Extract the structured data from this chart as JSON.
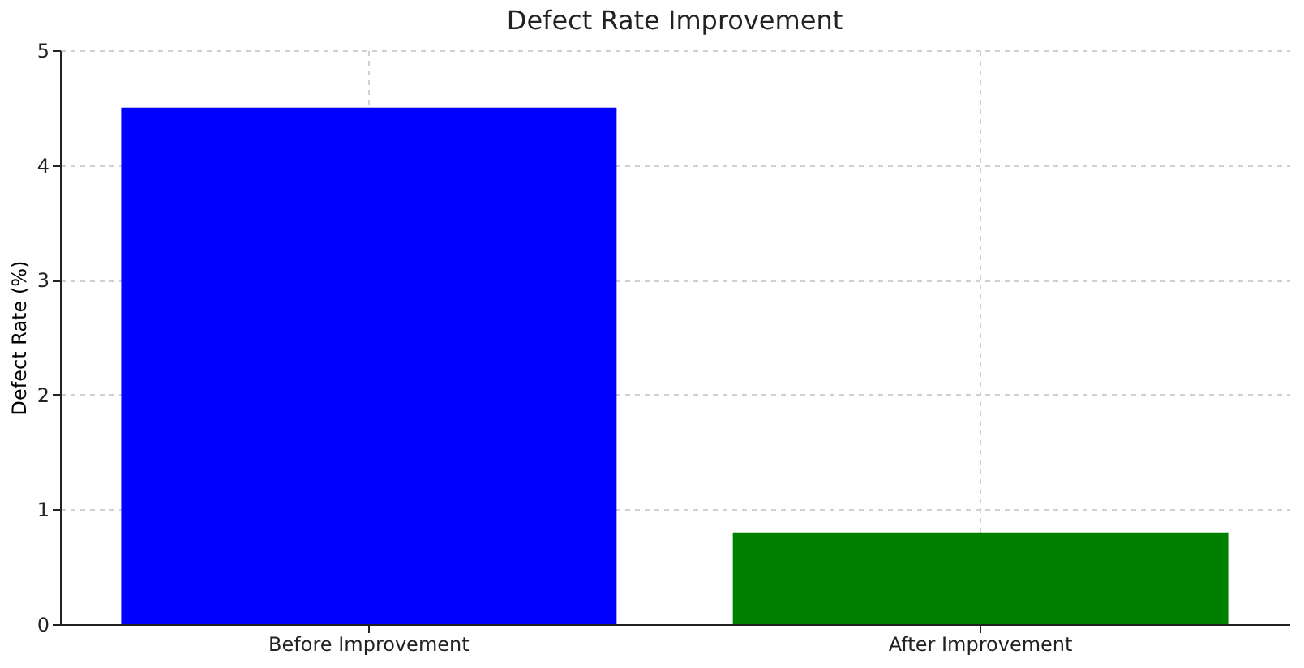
{
  "chart_data": {
    "type": "bar",
    "title": "Defect Rate Improvement",
    "ylabel": "Defect Rate (%)",
    "categories": [
      "Before Improvement",
      "After Improvement"
    ],
    "values": [
      4.5,
      0.8
    ],
    "colors": [
      "#0000ff",
      "#008000"
    ],
    "ylim": [
      0,
      5
    ],
    "yticks": [
      0,
      1,
      2,
      3,
      4,
      5
    ],
    "grid": true
  }
}
